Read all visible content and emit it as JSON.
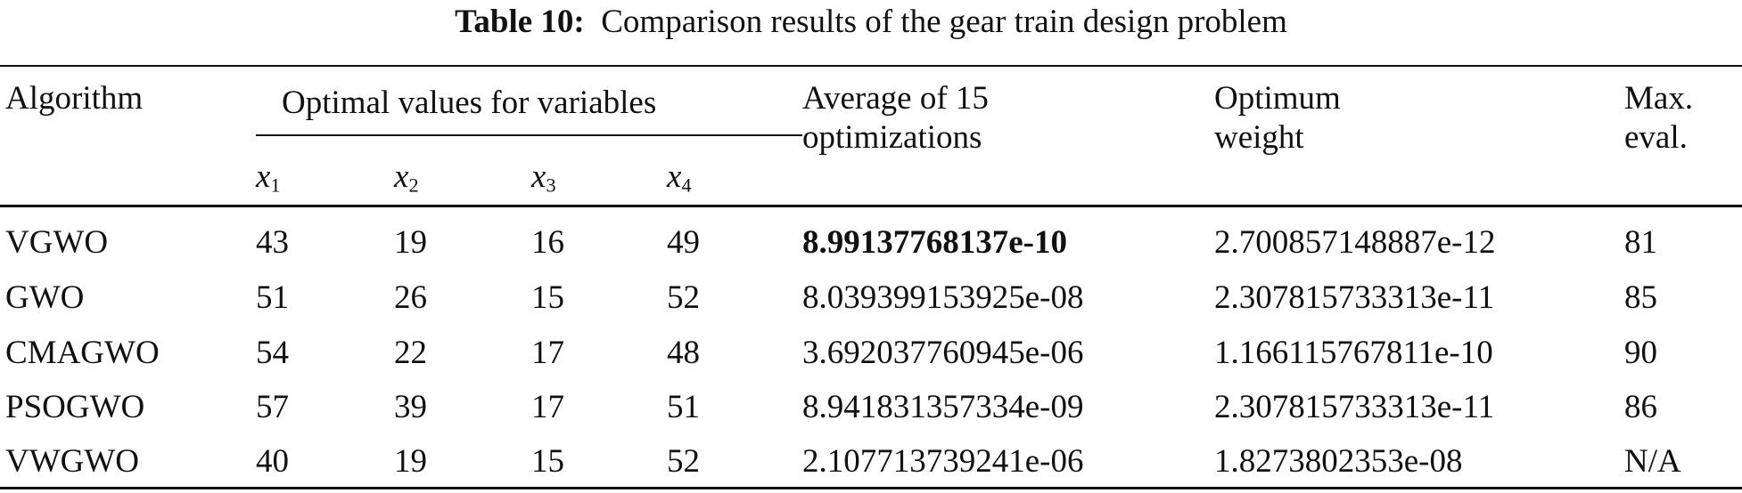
{
  "title": {
    "label": "Table 10:",
    "text": "Comparison results of the gear train design problem"
  },
  "headers": {
    "algorithm": "Algorithm",
    "variables_group": "Optimal values for variables",
    "variables": [
      {
        "sym": "x",
        "sub": "1"
      },
      {
        "sym": "x",
        "sub": "2"
      },
      {
        "sym": "x",
        "sub": "3"
      },
      {
        "sym": "x",
        "sub": "4"
      }
    ],
    "average_line1": "Average of 15",
    "average_line2": "optimizations",
    "optimum_line1": "Optimum",
    "optimum_line2": "weight",
    "maxeval_line1": "Max.",
    "maxeval_line2": "eval."
  },
  "rows": [
    {
      "algorithm": "VGWO",
      "x1": "43",
      "x2": "19",
      "x3": "16",
      "x4": "49",
      "average": "8.99137768137e-10",
      "optimum": "2.700857148887e-12",
      "max_eval": "81",
      "average_bold": true
    },
    {
      "algorithm": "GWO",
      "x1": "51",
      "x2": "26",
      "x3": "15",
      "x4": "52",
      "average": "8.039399153925e-08",
      "optimum": "2.307815733313e-11",
      "max_eval": "85"
    },
    {
      "algorithm": "CMAGWO",
      "x1": "54",
      "x2": "22",
      "x3": "17",
      "x4": "48",
      "average": "3.692037760945e-06",
      "optimum": "1.166115767811e-10",
      "max_eval": "90"
    },
    {
      "algorithm": "PSOGWO",
      "x1": "57",
      "x2": "39",
      "x3": "17",
      "x4": "51",
      "average": "8.941831357334e-09",
      "optimum": "2.307815733313e-11",
      "max_eval": "86"
    },
    {
      "algorithm": "VWGWO",
      "x1": "40",
      "x2": "19",
      "x3": "15",
      "x4": "52",
      "average": "2.107713739241e-06",
      "optimum": "1.8273802353e-08",
      "max_eval": "N/A"
    }
  ]
}
